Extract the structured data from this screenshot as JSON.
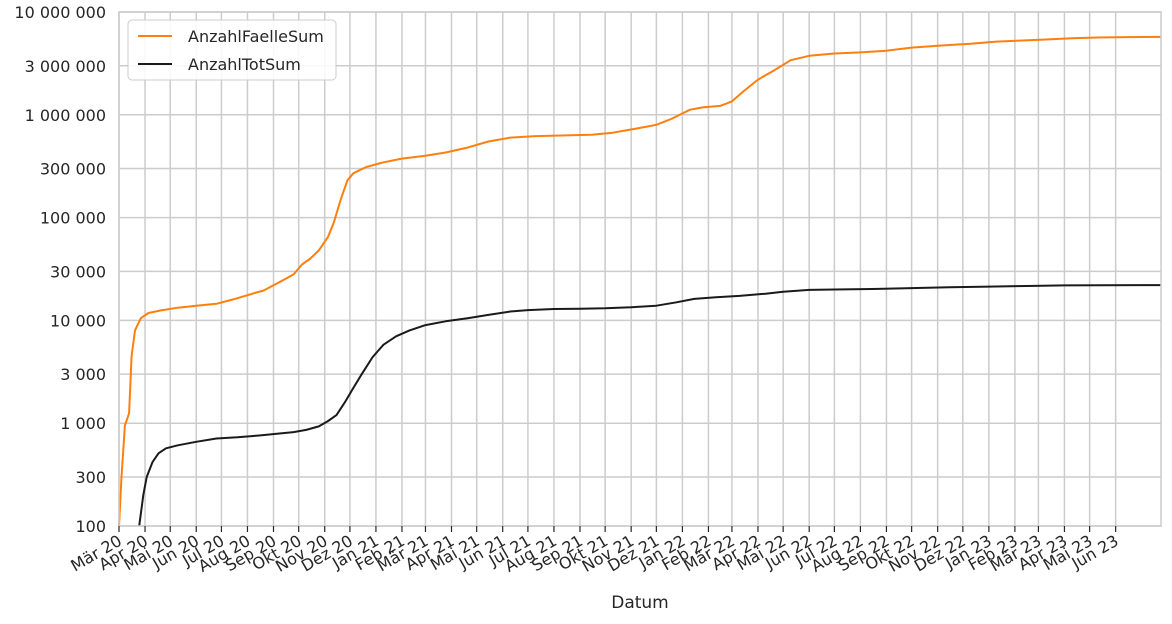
{
  "chart_data": {
    "type": "line",
    "title": "",
    "xlabel": "Datum",
    "ylabel": "",
    "yscale": "log",
    "ylim": [
      100,
      10000000
    ],
    "xlim": [
      "2020-03-01",
      "2023-07-25"
    ],
    "grid": true,
    "legend_position": "top-left",
    "y_ticks": [
      {
        "value": 100,
        "label": "100"
      },
      {
        "value": 300,
        "label": "300"
      },
      {
        "value": 1000,
        "label": "1 000"
      },
      {
        "value": 3000,
        "label": "3 000"
      },
      {
        "value": 10000,
        "label": "10 000"
      },
      {
        "value": 30000,
        "label": "30 000"
      },
      {
        "value": 100000,
        "label": "100 000"
      },
      {
        "value": 300000,
        "label": "300 000"
      },
      {
        "value": 1000000,
        "label": "1 000 000"
      },
      {
        "value": 3000000,
        "label": "3 000 000"
      },
      {
        "value": 10000000,
        "label": "10 000 000"
      }
    ],
    "x_ticks": [
      {
        "date": "2020-03-01",
        "label": "Mär 20"
      },
      {
        "date": "2020-04-01",
        "label": "Apr 20"
      },
      {
        "date": "2020-05-01",
        "label": "Mai 20"
      },
      {
        "date": "2020-06-01",
        "label": "Jun 20"
      },
      {
        "date": "2020-07-01",
        "label": "Jul 20"
      },
      {
        "date": "2020-08-01",
        "label": "Aug 20"
      },
      {
        "date": "2020-09-01",
        "label": "Sep 20"
      },
      {
        "date": "2020-10-01",
        "label": "Okt 20"
      },
      {
        "date": "2020-11-01",
        "label": "Nov 20"
      },
      {
        "date": "2020-12-01",
        "label": "Dez 20"
      },
      {
        "date": "2021-01-01",
        "label": "Jan 21"
      },
      {
        "date": "2021-02-01",
        "label": "Feb 21"
      },
      {
        "date": "2021-03-01",
        "label": "Mär 21"
      },
      {
        "date": "2021-04-01",
        "label": "Apr 21"
      },
      {
        "date": "2021-05-01",
        "label": "Mai 21"
      },
      {
        "date": "2021-06-01",
        "label": "Jun 21"
      },
      {
        "date": "2021-07-01",
        "label": "Jul 21"
      },
      {
        "date": "2021-08-01",
        "label": "Aug 21"
      },
      {
        "date": "2021-09-01",
        "label": "Sep 21"
      },
      {
        "date": "2021-10-01",
        "label": "Okt 21"
      },
      {
        "date": "2021-11-01",
        "label": "Nov 21"
      },
      {
        "date": "2021-12-01",
        "label": "Dez 21"
      },
      {
        "date": "2022-01-01",
        "label": "Jan 22"
      },
      {
        "date": "2022-02-01",
        "label": "Feb 22"
      },
      {
        "date": "2022-03-01",
        "label": "Mär 22"
      },
      {
        "date": "2022-04-01",
        "label": "Apr 22"
      },
      {
        "date": "2022-05-01",
        "label": "Mai 22"
      },
      {
        "date": "2022-06-01",
        "label": "Jun 22"
      },
      {
        "date": "2022-07-01",
        "label": "Jul 22"
      },
      {
        "date": "2022-08-01",
        "label": "Aug 22"
      },
      {
        "date": "2022-09-01",
        "label": "Sep 22"
      },
      {
        "date": "2022-10-01",
        "label": "Okt 22"
      },
      {
        "date": "2022-11-01",
        "label": "Nov 22"
      },
      {
        "date": "2022-12-01",
        "label": "Dez 22"
      },
      {
        "date": "2023-01-01",
        "label": "Jan 23"
      },
      {
        "date": "2023-02-01",
        "label": "Feb 23"
      },
      {
        "date": "2023-03-01",
        "label": "Mär 23"
      },
      {
        "date": "2023-04-01",
        "label": "Apr 23"
      },
      {
        "date": "2023-05-01",
        "label": "Mai 23"
      },
      {
        "date": "2023-06-01",
        "label": "Jun 23"
      }
    ],
    "series": [
      {
        "name": "AnzahlFaelleSum",
        "color": "#ff7f0e",
        "points": [
          [
            "2020-03-01",
            100
          ],
          [
            "2020-03-04",
            300
          ],
          [
            "2020-03-08",
            950
          ],
          [
            "2020-03-13",
            1250
          ],
          [
            "2020-03-16",
            4500
          ],
          [
            "2020-03-20",
            8000
          ],
          [
            "2020-03-27",
            10500
          ],
          [
            "2020-04-05",
            11800
          ],
          [
            "2020-04-20",
            12500
          ],
          [
            "2020-05-10",
            13300
          ],
          [
            "2020-06-01",
            13900
          ],
          [
            "2020-06-25",
            14500
          ],
          [
            "2020-07-15",
            16000
          ],
          [
            "2020-08-10",
            18500
          ],
          [
            "2020-08-20",
            19500
          ],
          [
            "2020-09-10",
            24000
          ],
          [
            "2020-09-25",
            28000
          ],
          [
            "2020-10-05",
            35000
          ],
          [
            "2020-10-15",
            40000
          ],
          [
            "2020-10-25",
            48000
          ],
          [
            "2020-11-05",
            65000
          ],
          [
            "2020-11-12",
            90000
          ],
          [
            "2020-11-20",
            150000
          ],
          [
            "2020-11-28",
            230000
          ],
          [
            "2020-12-05",
            270000
          ],
          [
            "2020-12-20",
            310000
          ],
          [
            "2021-01-10",
            345000
          ],
          [
            "2021-02-01",
            375000
          ],
          [
            "2021-03-01",
            400000
          ],
          [
            "2021-03-25",
            430000
          ],
          [
            "2021-04-20",
            480000
          ],
          [
            "2021-05-15",
            550000
          ],
          [
            "2021-06-10",
            600000
          ],
          [
            "2021-07-10",
            620000
          ],
          [
            "2021-08-15",
            630000
          ],
          [
            "2021-09-15",
            640000
          ],
          [
            "2021-10-10",
            670000
          ],
          [
            "2021-11-05",
            730000
          ],
          [
            "2021-12-01",
            800000
          ],
          [
            "2021-12-20",
            920000
          ],
          [
            "2022-01-10",
            1120000
          ],
          [
            "2022-01-25",
            1180000
          ],
          [
            "2022-02-15",
            1220000
          ],
          [
            "2022-03-01",
            1350000
          ],
          [
            "2022-03-15",
            1700000
          ],
          [
            "2022-04-01",
            2200000
          ],
          [
            "2022-04-20",
            2700000
          ],
          [
            "2022-05-10",
            3400000
          ],
          [
            "2022-06-01",
            3750000
          ],
          [
            "2022-07-01",
            3950000
          ],
          [
            "2022-08-01",
            4050000
          ],
          [
            "2022-09-01",
            4200000
          ],
          [
            "2022-10-01",
            4500000
          ],
          [
            "2022-11-01",
            4700000
          ],
          [
            "2022-12-10",
            4900000
          ],
          [
            "2023-01-10",
            5150000
          ],
          [
            "2023-02-10",
            5280000
          ],
          [
            "2023-03-10",
            5400000
          ],
          [
            "2023-04-10",
            5550000
          ],
          [
            "2023-05-10",
            5650000
          ],
          [
            "2023-06-15",
            5700000
          ],
          [
            "2023-07-25",
            5730000
          ]
        ]
      },
      {
        "name": "AnzahlTotSum",
        "color": "#1a1a1a",
        "points": [
          [
            "2020-03-25",
            100
          ],
          [
            "2020-03-30",
            200
          ],
          [
            "2020-04-03",
            300
          ],
          [
            "2020-04-10",
            420
          ],
          [
            "2020-04-17",
            510
          ],
          [
            "2020-04-26",
            570
          ],
          [
            "2020-05-10",
            610
          ],
          [
            "2020-06-01",
            660
          ],
          [
            "2020-06-25",
            710
          ],
          [
            "2020-07-20",
            730
          ],
          [
            "2020-08-15",
            760
          ],
          [
            "2020-09-05",
            790
          ],
          [
            "2020-09-25",
            820
          ],
          [
            "2020-10-10",
            860
          ],
          [
            "2020-10-25",
            930
          ],
          [
            "2020-11-05",
            1050
          ],
          [
            "2020-11-15",
            1200
          ],
          [
            "2020-11-25",
            1600
          ],
          [
            "2020-12-05",
            2200
          ],
          [
            "2020-12-15",
            3000
          ],
          [
            "2020-12-28",
            4400
          ],
          [
            "2021-01-10",
            5800
          ],
          [
            "2021-01-25",
            7000
          ],
          [
            "2021-02-10",
            8000
          ],
          [
            "2021-03-01",
            9000
          ],
          [
            "2021-03-25",
            9800
          ],
          [
            "2021-04-20",
            10500
          ],
          [
            "2021-05-15",
            11300
          ],
          [
            "2021-06-10",
            12200
          ],
          [
            "2021-07-01",
            12600
          ],
          [
            "2021-08-01",
            12900
          ],
          [
            "2021-09-01",
            13000
          ],
          [
            "2021-10-01",
            13100
          ],
          [
            "2021-11-01",
            13400
          ],
          [
            "2021-12-01",
            13900
          ],
          [
            "2021-12-25",
            15000
          ],
          [
            "2022-01-15",
            16200
          ],
          [
            "2022-02-10",
            16800
          ],
          [
            "2022-03-10",
            17300
          ],
          [
            "2022-04-10",
            18200
          ],
          [
            "2022-05-01",
            19000
          ],
          [
            "2022-06-01",
            19800
          ],
          [
            "2022-07-01",
            20000
          ],
          [
            "2022-08-15",
            20200
          ],
          [
            "2022-10-01",
            20600
          ],
          [
            "2022-11-15",
            21000
          ],
          [
            "2023-01-01",
            21300
          ],
          [
            "2023-02-15",
            21600
          ],
          [
            "2023-04-01",
            21900
          ],
          [
            "2023-05-15",
            22000
          ],
          [
            "2023-07-25",
            22050
          ]
        ]
      }
    ]
  }
}
